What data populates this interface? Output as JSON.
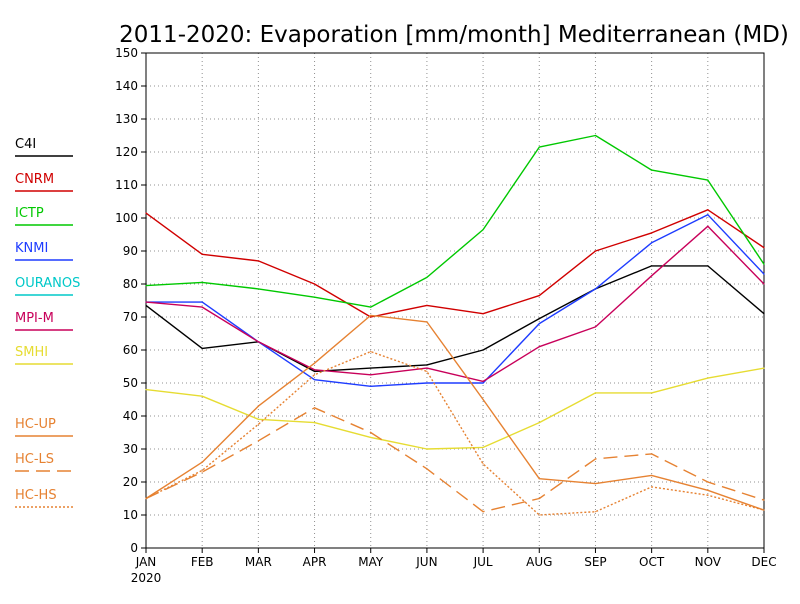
{
  "chart_data": {
    "type": "line",
    "title": "2011-2020: Evaporation [mm/month] Mediterranean (MD)",
    "xlabel": "",
    "ylabel": "",
    "categories": [
      "JAN",
      "FEB",
      "MAR",
      "APR",
      "MAY",
      "JUN",
      "JUL",
      "AUG",
      "SEP",
      "OCT",
      "NOV",
      "DEC"
    ],
    "x_sublabel": "2020",
    "ylim": [
      0,
      150
    ],
    "yticks": [
      0,
      10,
      20,
      30,
      40,
      50,
      60,
      70,
      80,
      90,
      100,
      110,
      120,
      130,
      140,
      150
    ],
    "grid": true,
    "legend_position": "left",
    "series": [
      {
        "name": "C4I",
        "color": "#000000",
        "dash": "solid",
        "values": [
          73.5,
          60.5,
          62.5,
          53.5,
          54.5,
          55.5,
          60,
          69.5,
          78.5,
          85.5,
          85.5,
          71
        ]
      },
      {
        "name": "CNRM",
        "color": "#d00000",
        "dash": "solid",
        "values": [
          101.5,
          89,
          87,
          80,
          70,
          73.5,
          71,
          76.5,
          90,
          95.5,
          102.5,
          91
        ]
      },
      {
        "name": "ICTP",
        "color": "#00c800",
        "dash": "solid",
        "values": [
          79.5,
          80.5,
          78.5,
          76,
          73,
          82,
          96.5,
          121.5,
          125,
          114.5,
          111.5,
          86
        ]
      },
      {
        "name": "KNMI",
        "color": "#1e3cff",
        "dash": "solid",
        "values": [
          74.5,
          74.5,
          62.5,
          51,
          49,
          50,
          50,
          68,
          78.5,
          92.5,
          101,
          83
        ]
      },
      {
        "name": "OURANOS",
        "color": "#00c8c8",
        "dash": "solid",
        "values": null
      },
      {
        "name": "MPI-M",
        "color": "#c8005a",
        "dash": "solid",
        "values": [
          74.5,
          73,
          62.5,
          54,
          52.5,
          54.5,
          50.5,
          61,
          67,
          82.5,
          97.5,
          80
        ]
      },
      {
        "name": "SMHI",
        "color": "#e6dc32",
        "dash": "solid",
        "values": [
          48,
          46,
          39,
          38,
          33.5,
          30,
          30.5,
          38,
          47,
          47,
          51.5,
          54.5
        ]
      },
      {
        "name": "HC-UP",
        "color": "#e68232",
        "dash": "solid",
        "values": [
          15,
          26,
          43,
          56,
          70.5,
          68.5,
          45,
          21,
          19.5,
          22,
          17.5,
          11.5
        ]
      },
      {
        "name": "HC-LS",
        "color": "#e68232",
        "dash": "long",
        "values": [
          15,
          23,
          32.5,
          42.5,
          35,
          24,
          11,
          15,
          27,
          28.5,
          20,
          14.5
        ]
      },
      {
        "name": "HC-HS",
        "color": "#e68232",
        "dash": "dot",
        "values": [
          15,
          23.5,
          37.5,
          52.5,
          59.5,
          53.5,
          25.5,
          10,
          11,
          18.5,
          16,
          11.5
        ]
      }
    ]
  }
}
